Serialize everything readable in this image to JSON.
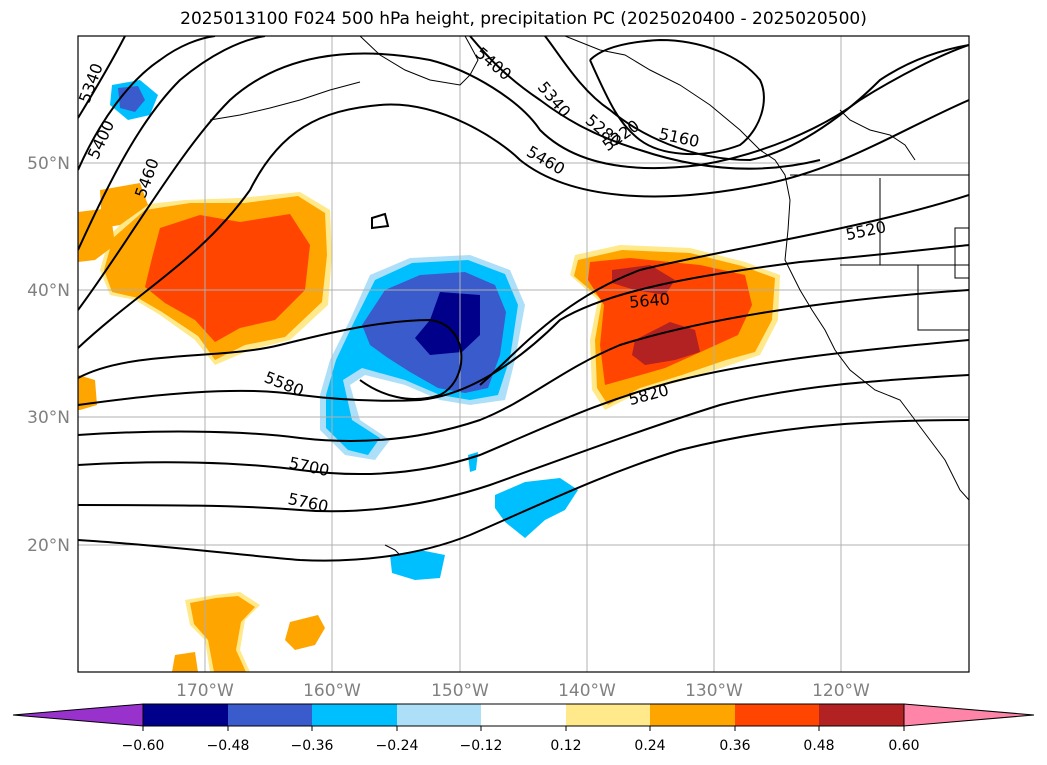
{
  "title": "2025013100 F024 500 hPa height, precipitation PC (2025020400 - 2025020500)",
  "lat_labels": [
    "50°N",
    "40°N",
    "30°N",
    "20°N"
  ],
  "lon_labels": [
    "170°W",
    "160°W",
    "150°W",
    "140°W",
    "130°W",
    "120°W"
  ],
  "contour_labels": [
    "5340",
    "5400",
    "5460",
    "5400",
    "5340",
    "5280",
    "5220",
    "5160",
    "5460",
    "5520",
    "5640",
    "5580",
    "5820",
    "5700",
    "5760"
  ],
  "colorbar": {
    "ticks": [
      "−0.60",
      "−0.48",
      "−0.36",
      "−0.24",
      "−0.12",
      "0.12",
      "0.24",
      "0.36",
      "0.48",
      "0.60"
    ],
    "colors": [
      "#9932CC",
      "#00008B",
      "#3A5BCB",
      "#00BFFF",
      "#ADE0F8",
      "#FFFFFF",
      "#FFE98A",
      "#FFA500",
      "#FF4500",
      "#B22222",
      "#FF85A8"
    ]
  }
}
